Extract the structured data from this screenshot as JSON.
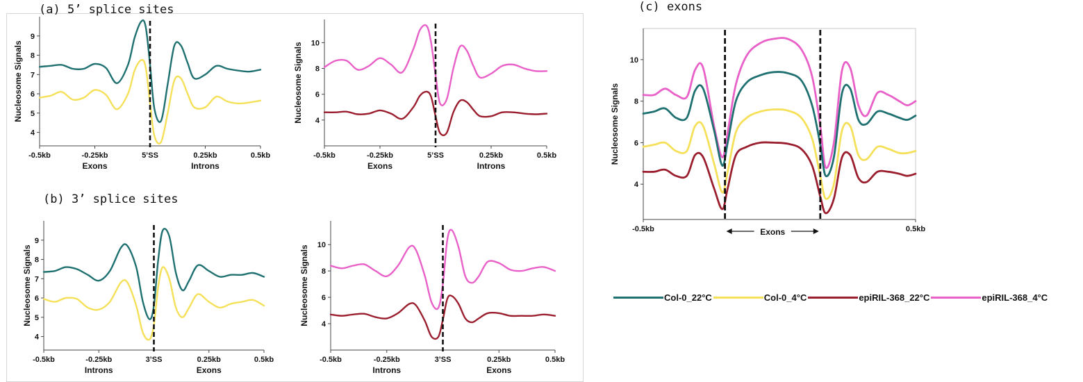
{
  "captions": {
    "a": "(a) 5’ splice sites",
    "b": "(b) 3’ splice sites",
    "c": "(c) exons"
  },
  "legend": [
    {
      "name": "Col-0_22°C",
      "color": "#1f7070"
    },
    {
      "name": "Col-0_4°C",
      "color": "#f5e05a"
    },
    {
      "name": "epiRIL-368_22°C",
      "color": "#9b1e2e"
    },
    {
      "name": "epiRIL-368_4°C",
      "color": "#e860c8"
    }
  ],
  "chart_data": [
    {
      "id": "a-left",
      "type": "line",
      "panel": "(a) 5’ splice sites",
      "ylabel": "Nucleosome Signals",
      "xlim": [
        -0.5,
        0.5
      ],
      "ylim": [
        3.3,
        10.0
      ],
      "yticks": [
        4,
        5,
        6,
        7,
        8,
        9
      ],
      "xticks": [
        -0.5,
        -0.25,
        0.25,
        0.5
      ],
      "xticklabels": [
        "-0.5kb",
        "-0.25kb",
        "0.25kb",
        "0.5kb"
      ],
      "center_label": "5’SS",
      "divider_x": 0.0,
      "region_labels": [
        {
          "text": "Exons",
          "x": -0.25
        },
        {
          "text": "Introns",
          "x": 0.25
        }
      ],
      "series": [
        {
          "name": "Col-0_22°C",
          "color": "#1f7070",
          "x": [
            -0.5,
            -0.45,
            -0.4,
            -0.35,
            -0.3,
            -0.25,
            -0.2,
            -0.15,
            -0.1,
            -0.07,
            -0.04,
            -0.02,
            0.0,
            0.02,
            0.05,
            0.08,
            0.11,
            0.14,
            0.17,
            0.2,
            0.25,
            0.3,
            0.35,
            0.4,
            0.45,
            0.5
          ],
          "y": [
            7.4,
            7.45,
            7.5,
            7.3,
            7.3,
            7.55,
            7.35,
            6.55,
            7.5,
            8.9,
            9.75,
            9.5,
            7.5,
            5.2,
            4.6,
            6.5,
            8.5,
            8.5,
            7.6,
            6.8,
            7.0,
            7.45,
            7.3,
            7.2,
            7.15,
            7.25
          ]
        },
        {
          "name": "Col-0_4°C",
          "color": "#f5e05a",
          "x": [
            -0.5,
            -0.45,
            -0.4,
            -0.35,
            -0.3,
            -0.25,
            -0.2,
            -0.15,
            -0.1,
            -0.07,
            -0.04,
            -0.02,
            0.0,
            0.02,
            0.05,
            0.08,
            0.11,
            0.14,
            0.17,
            0.2,
            0.25,
            0.3,
            0.35,
            0.4,
            0.45,
            0.5
          ],
          "y": [
            5.8,
            5.9,
            6.1,
            5.7,
            5.8,
            6.2,
            5.95,
            5.2,
            6.0,
            7.2,
            7.75,
            7.4,
            5.5,
            3.8,
            3.5,
            5.0,
            6.7,
            6.8,
            6.0,
            5.3,
            5.3,
            5.85,
            5.6,
            5.5,
            5.55,
            5.65
          ]
        }
      ]
    },
    {
      "id": "a-right",
      "type": "line",
      "panel": "(a) 5’ splice sites",
      "ylabel": "Nucleosome Signals",
      "xlim": [
        -0.5,
        0.5
      ],
      "ylim": [
        2.0,
        11.8
      ],
      "yticks": [
        4,
        6,
        8,
        10
      ],
      "xticks": [
        -0.5,
        -0.25,
        0.25,
        0.5
      ],
      "xticklabels": [
        "-0.5kb",
        "-0.25kb",
        "0.25kb",
        "0.5kb"
      ],
      "center_label": "5’SS",
      "divider_x": 0.0,
      "region_labels": [
        {
          "text": "Exons",
          "x": -0.25
        },
        {
          "text": "Introns",
          "x": 0.25
        }
      ],
      "series": [
        {
          "name": "epiRIL-368_4°C",
          "color": "#e860c8",
          "x": [
            -0.5,
            -0.45,
            -0.4,
            -0.35,
            -0.3,
            -0.25,
            -0.2,
            -0.15,
            -0.1,
            -0.07,
            -0.04,
            -0.02,
            0.0,
            0.02,
            0.05,
            0.08,
            0.11,
            0.14,
            0.17,
            0.2,
            0.25,
            0.3,
            0.35,
            0.4,
            0.45,
            0.5
          ],
          "y": [
            8.1,
            8.6,
            8.6,
            7.9,
            8.2,
            8.8,
            8.3,
            7.7,
            9.5,
            11.0,
            11.3,
            10.0,
            7.5,
            5.3,
            5.6,
            8.0,
            9.7,
            9.4,
            8.2,
            7.3,
            7.6,
            8.2,
            8.3,
            8.0,
            7.8,
            7.8
          ]
        },
        {
          "name": "epiRIL-368_22°C",
          "color": "#9b1e2e",
          "x": [
            -0.5,
            -0.45,
            -0.4,
            -0.35,
            -0.3,
            -0.25,
            -0.2,
            -0.15,
            -0.1,
            -0.07,
            -0.04,
            -0.02,
            0.0,
            0.02,
            0.05,
            0.08,
            0.11,
            0.14,
            0.17,
            0.2,
            0.25,
            0.3,
            0.35,
            0.4,
            0.45,
            0.5
          ],
          "y": [
            4.6,
            4.6,
            4.65,
            4.45,
            4.5,
            4.75,
            4.5,
            4.1,
            5.0,
            5.9,
            6.2,
            5.8,
            4.3,
            3.0,
            3.0,
            4.6,
            5.5,
            5.4,
            4.8,
            4.3,
            4.3,
            4.6,
            4.6,
            4.5,
            4.45,
            4.5
          ]
        }
      ]
    },
    {
      "id": "b-left",
      "type": "line",
      "panel": "(b) 3’ splice sites",
      "ylabel": "Nucleosome Signals",
      "xlim": [
        -0.5,
        0.5
      ],
      "ylim": [
        3.3,
        10.0
      ],
      "yticks": [
        4,
        5,
        6,
        7,
        8,
        9
      ],
      "xticks": [
        -0.5,
        -0.25,
        0.25,
        0.5
      ],
      "xticklabels": [
        "-0.5kb",
        "-0.25kb",
        "0.25kb",
        "0.5kb"
      ],
      "center_label": "3’SS",
      "divider_x": 0.0,
      "region_labels": [
        {
          "text": "Introns",
          "x": -0.25
        },
        {
          "text": "Exons",
          "x": 0.25
        }
      ],
      "series": [
        {
          "name": "Col-0_22°C",
          "color": "#1f7070",
          "x": [
            -0.5,
            -0.45,
            -0.4,
            -0.35,
            -0.3,
            -0.25,
            -0.2,
            -0.15,
            -0.12,
            -0.08,
            -0.05,
            -0.02,
            0.0,
            0.02,
            0.04,
            0.07,
            0.1,
            0.13,
            0.16,
            0.2,
            0.25,
            0.3,
            0.35,
            0.4,
            0.45,
            0.5
          ],
          "y": [
            7.35,
            7.4,
            7.6,
            7.5,
            7.2,
            6.9,
            7.4,
            8.6,
            8.7,
            7.6,
            5.8,
            4.9,
            5.6,
            8.0,
            9.5,
            9.2,
            7.3,
            6.4,
            6.9,
            7.7,
            7.4,
            7.1,
            7.2,
            7.2,
            7.3,
            7.1
          ]
        },
        {
          "name": "Col-0_4°C",
          "color": "#f5e05a",
          "x": [
            -0.5,
            -0.45,
            -0.4,
            -0.35,
            -0.3,
            -0.25,
            -0.2,
            -0.15,
            -0.12,
            -0.08,
            -0.05,
            -0.02,
            0.0,
            0.02,
            0.04,
            0.07,
            0.1,
            0.13,
            0.16,
            0.2,
            0.25,
            0.3,
            0.35,
            0.4,
            0.45,
            0.5
          ],
          "y": [
            5.95,
            5.8,
            6.0,
            5.95,
            5.5,
            5.4,
            5.8,
            6.8,
            6.8,
            5.6,
            4.2,
            3.85,
            4.6,
            6.6,
            7.6,
            7.0,
            5.5,
            5.0,
            5.5,
            6.2,
            5.8,
            5.5,
            5.7,
            5.8,
            5.9,
            5.6
          ]
        }
      ]
    },
    {
      "id": "b-right",
      "type": "line",
      "panel": "(b) 3’ splice sites",
      "ylabel": "Nucleosome Signals",
      "xlim": [
        -0.5,
        0.5
      ],
      "ylim": [
        2.0,
        11.8
      ],
      "yticks": [
        4,
        6,
        8,
        10
      ],
      "xticks": [
        -0.5,
        -0.25,
        0.25,
        0.5
      ],
      "xticklabels": [
        "-0.5kb",
        "-0.25kb",
        "0.25kb",
        "0.5kb"
      ],
      "center_label": "3’SS",
      "divider_x": 0.0,
      "region_labels": [
        {
          "text": "Introns",
          "x": -0.25
        },
        {
          "text": "Exons",
          "x": 0.25
        }
      ],
      "series": [
        {
          "name": "epiRIL-368_4°C",
          "color": "#e860c8",
          "x": [
            -0.5,
            -0.45,
            -0.4,
            -0.35,
            -0.3,
            -0.25,
            -0.2,
            -0.15,
            -0.12,
            -0.08,
            -0.05,
            -0.02,
            0.0,
            0.02,
            0.04,
            0.07,
            0.1,
            0.13,
            0.16,
            0.2,
            0.25,
            0.3,
            0.35,
            0.4,
            0.45,
            0.5
          ],
          "y": [
            8.4,
            8.2,
            8.4,
            8.5,
            8.0,
            7.6,
            8.4,
            9.8,
            9.6,
            7.6,
            5.6,
            5.2,
            7.0,
            10.4,
            11.1,
            9.8,
            7.6,
            7.1,
            7.6,
            8.7,
            8.6,
            8.1,
            8.0,
            8.2,
            8.3,
            8.0
          ]
        },
        {
          "name": "epiRIL-368_22°C",
          "color": "#9b1e2e",
          "x": [
            -0.5,
            -0.45,
            -0.4,
            -0.35,
            -0.3,
            -0.25,
            -0.2,
            -0.15,
            -0.12,
            -0.08,
            -0.05,
            -0.02,
            0.0,
            0.02,
            0.04,
            0.07,
            0.1,
            0.13,
            0.16,
            0.2,
            0.25,
            0.3,
            0.35,
            0.4,
            0.45,
            0.5
          ],
          "y": [
            4.7,
            4.6,
            4.7,
            4.75,
            4.5,
            4.4,
            4.8,
            5.5,
            5.4,
            4.2,
            3.0,
            3.0,
            4.3,
            5.9,
            6.1,
            5.5,
            4.4,
            4.1,
            4.4,
            4.8,
            4.8,
            4.6,
            4.6,
            4.6,
            4.7,
            4.6
          ]
        }
      ]
    },
    {
      "id": "c",
      "type": "line",
      "panel": "(c) exons",
      "ylabel": "Nucleosome Signals",
      "xlim": [
        0,
        1
      ],
      "ylim": [
        2.3,
        11.5
      ],
      "yticks": [
        4,
        6,
        8,
        10
      ],
      "xticks": [
        0,
        1
      ],
      "xticklabels": [
        "-0.5kb",
        "0.5kb"
      ],
      "center_label": "Exons",
      "dividers": [
        0.3,
        0.65
      ],
      "series": [
        {
          "name": "epiRIL-368_4°C",
          "color": "#e860c8",
          "x": [
            0,
            0.04,
            0.08,
            0.12,
            0.16,
            0.19,
            0.22,
            0.26,
            0.29,
            0.31,
            0.34,
            0.38,
            0.43,
            0.48,
            0.53,
            0.58,
            0.62,
            0.65,
            0.67,
            0.7,
            0.73,
            0.76,
            0.79,
            0.82,
            0.86,
            0.9,
            0.94,
            0.97,
            1.0
          ],
          "y": [
            8.3,
            8.3,
            8.6,
            8.3,
            8.2,
            9.5,
            9.6,
            6.8,
            5.3,
            6.5,
            8.8,
            10.2,
            10.8,
            11.0,
            11.0,
            10.5,
            9.2,
            6.8,
            4.8,
            6.0,
            9.5,
            9.6,
            7.8,
            7.3,
            8.4,
            8.3,
            8.0,
            7.8,
            8.0
          ]
        },
        {
          "name": "Col-0_22°C",
          "color": "#1f7070",
          "x": [
            0,
            0.04,
            0.08,
            0.12,
            0.16,
            0.19,
            0.22,
            0.26,
            0.29,
            0.31,
            0.34,
            0.38,
            0.43,
            0.48,
            0.53,
            0.58,
            0.62,
            0.65,
            0.67,
            0.7,
            0.73,
            0.76,
            0.79,
            0.82,
            0.86,
            0.9,
            0.94,
            0.97,
            1.0
          ],
          "y": [
            7.4,
            7.5,
            7.65,
            7.2,
            7.2,
            8.5,
            8.6,
            6.6,
            4.9,
            6.0,
            8.0,
            8.9,
            9.25,
            9.4,
            9.35,
            9.0,
            7.8,
            5.9,
            4.4,
            5.3,
            8.4,
            8.6,
            7.1,
            6.9,
            7.5,
            7.4,
            7.2,
            7.1,
            7.3
          ]
        },
        {
          "name": "Col-0_4°C",
          "color": "#f5e05a",
          "x": [
            0,
            0.04,
            0.08,
            0.12,
            0.16,
            0.19,
            0.22,
            0.26,
            0.29,
            0.31,
            0.34,
            0.38,
            0.43,
            0.48,
            0.53,
            0.58,
            0.62,
            0.65,
            0.67,
            0.7,
            0.73,
            0.76,
            0.79,
            0.82,
            0.86,
            0.9,
            0.94,
            0.97,
            1.0
          ],
          "y": [
            5.8,
            5.9,
            6.0,
            5.6,
            5.6,
            6.8,
            6.8,
            5.0,
            3.6,
            4.6,
            6.5,
            7.2,
            7.5,
            7.6,
            7.55,
            7.2,
            6.2,
            4.4,
            3.3,
            4.0,
            6.6,
            6.8,
            5.4,
            5.2,
            5.8,
            5.7,
            5.5,
            5.5,
            5.6
          ]
        },
        {
          "name": "epiRIL-368_22°C",
          "color": "#9b1e2e",
          "x": [
            0,
            0.04,
            0.08,
            0.12,
            0.16,
            0.19,
            0.22,
            0.26,
            0.29,
            0.31,
            0.34,
            0.38,
            0.43,
            0.48,
            0.53,
            0.58,
            0.62,
            0.65,
            0.67,
            0.7,
            0.73,
            0.76,
            0.79,
            0.82,
            0.86,
            0.9,
            0.94,
            0.97,
            1.0
          ],
          "y": [
            4.6,
            4.6,
            4.7,
            4.4,
            4.4,
            5.4,
            5.3,
            3.8,
            2.8,
            3.8,
            5.4,
            5.8,
            6.0,
            6.0,
            5.95,
            5.7,
            4.9,
            3.4,
            2.6,
            3.3,
            5.3,
            5.4,
            4.3,
            4.1,
            4.6,
            4.6,
            4.5,
            4.4,
            4.5
          ]
        }
      ]
    }
  ]
}
